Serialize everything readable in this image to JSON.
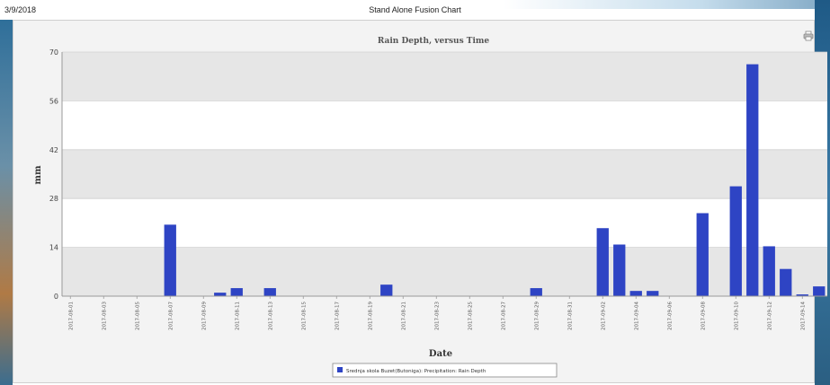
{
  "header": {
    "date": "3/9/2018",
    "title": "Stand Alone Fusion Chart"
  },
  "icons": {
    "print": "printer-icon"
  },
  "colors": {
    "bar": "#2e44c4",
    "band": "#e6e6e6",
    "panel": "#f3f3f3"
  },
  "chart_data": {
    "type": "bar",
    "title": "Rain Depth, versus Time",
    "xlabel": "Date",
    "ylabel": "mm",
    "ylim": [
      0,
      70
    ],
    "yticks": [
      0,
      14,
      28,
      42,
      56,
      70
    ],
    "grid": true,
    "legend_position": "bottom-center",
    "categories": [
      "2017-08-01",
      "2017-08-02",
      "2017-08-03",
      "2017-08-04",
      "2017-08-05",
      "2017-08-06",
      "2017-08-07",
      "2017-08-08",
      "2017-08-09",
      "2017-08-10",
      "2017-08-11",
      "2017-08-12",
      "2017-08-13",
      "2017-08-14",
      "2017-08-15",
      "2017-08-16",
      "2017-08-17",
      "2017-08-18",
      "2017-08-19",
      "2017-08-20",
      "2017-08-21",
      "2017-08-22",
      "2017-08-23",
      "2017-08-24",
      "2017-08-25",
      "2017-08-26",
      "2017-08-27",
      "2017-08-28",
      "2017-08-29",
      "2017-08-30",
      "2017-08-31",
      "2017-09-01",
      "2017-09-02",
      "2017-09-03",
      "2017-09-04",
      "2017-09-05",
      "2017-09-06",
      "2017-09-07",
      "2017-09-08",
      "2017-09-09",
      "2017-09-10",
      "2017-09-11",
      "2017-09-12",
      "2017-09-13",
      "2017-09-14",
      "2017-09-15"
    ],
    "tick_labels": [
      "2017-08-01",
      "2017-08-03",
      "2017-08-05",
      "2017-08-07",
      "2017-08-09",
      "2017-08-11",
      "2017-08-13",
      "2017-08-15",
      "2017-08-17",
      "2017-08-19",
      "2017-08-21",
      "2017-08-23",
      "2017-08-25",
      "2017-08-27",
      "2017-08-29",
      "2017-08-31",
      "2017-09-02",
      "2017-09-04",
      "2017-09-06",
      "2017-09-08",
      "2017-09-10",
      "2017-09-12",
      "2017-09-14"
    ],
    "series": [
      {
        "name": "Srednja skola Buzet(Butoniga): Precipitation: Rain Depth",
        "values": [
          0,
          0,
          0,
          0,
          0,
          0,
          20.5,
          0,
          0,
          1,
          2.3,
          0,
          2.3,
          0,
          0,
          0,
          0,
          0,
          0,
          3.3,
          0,
          0,
          0,
          0,
          0,
          0,
          0,
          0,
          2.3,
          0,
          0,
          0,
          19.5,
          14.8,
          1.5,
          1.5,
          0,
          0,
          23.8,
          0,
          31.5,
          66.5,
          14.3,
          7.8,
          0.5,
          2.8
        ]
      }
    ]
  }
}
